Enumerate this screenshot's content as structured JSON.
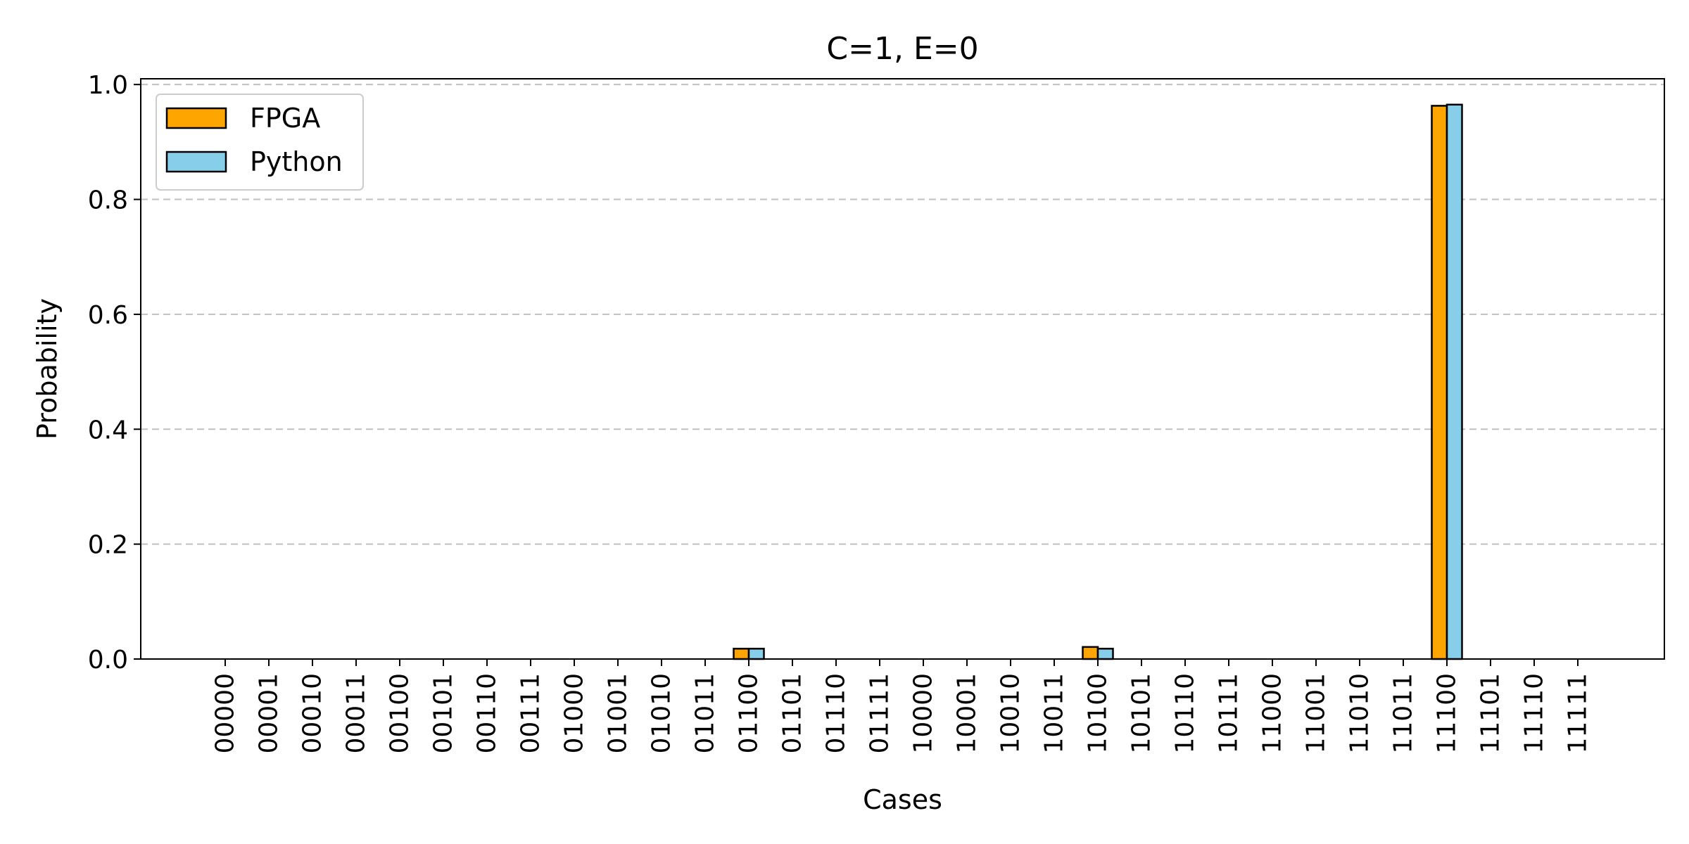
{
  "chart_data": {
    "type": "bar",
    "title": "C=1, E=0",
    "xlabel": "Cases",
    "ylabel": "Probability",
    "ylim": [
      0,
      1.01
    ],
    "yticks": [
      "0.0",
      "0.2",
      "0.4",
      "0.6",
      "0.8",
      "1.0"
    ],
    "grid": "y-dashed",
    "legend_position": "top-left",
    "categories": [
      "00000",
      "00001",
      "00010",
      "00011",
      "00100",
      "00101",
      "00110",
      "00111",
      "01000",
      "01001",
      "01010",
      "01011",
      "01100",
      "01101",
      "01110",
      "01111",
      "10000",
      "10001",
      "10010",
      "10011",
      "10100",
      "10101",
      "10110",
      "10111",
      "11000",
      "11001",
      "11010",
      "11011",
      "11100",
      "11101",
      "11110",
      "11111"
    ],
    "series": [
      {
        "name": "FPGA",
        "color": "#ffa500",
        "values": [
          0,
          0,
          0,
          0,
          0,
          0,
          0,
          0,
          0,
          0,
          0,
          0,
          0.018,
          0,
          0,
          0,
          0,
          0,
          0,
          0,
          0.021,
          0,
          0,
          0,
          0,
          0,
          0,
          0,
          0.963,
          0,
          0,
          0
        ]
      },
      {
        "name": "Python",
        "color": "#87ceeb",
        "values": [
          0,
          0,
          0,
          0,
          0,
          0,
          0,
          0,
          0,
          0,
          0,
          0,
          0.018,
          0,
          0,
          0,
          0,
          0,
          0,
          0,
          0.018,
          0,
          0,
          0,
          0,
          0,
          0,
          0,
          0.965,
          0,
          0,
          0
        ]
      }
    ]
  }
}
